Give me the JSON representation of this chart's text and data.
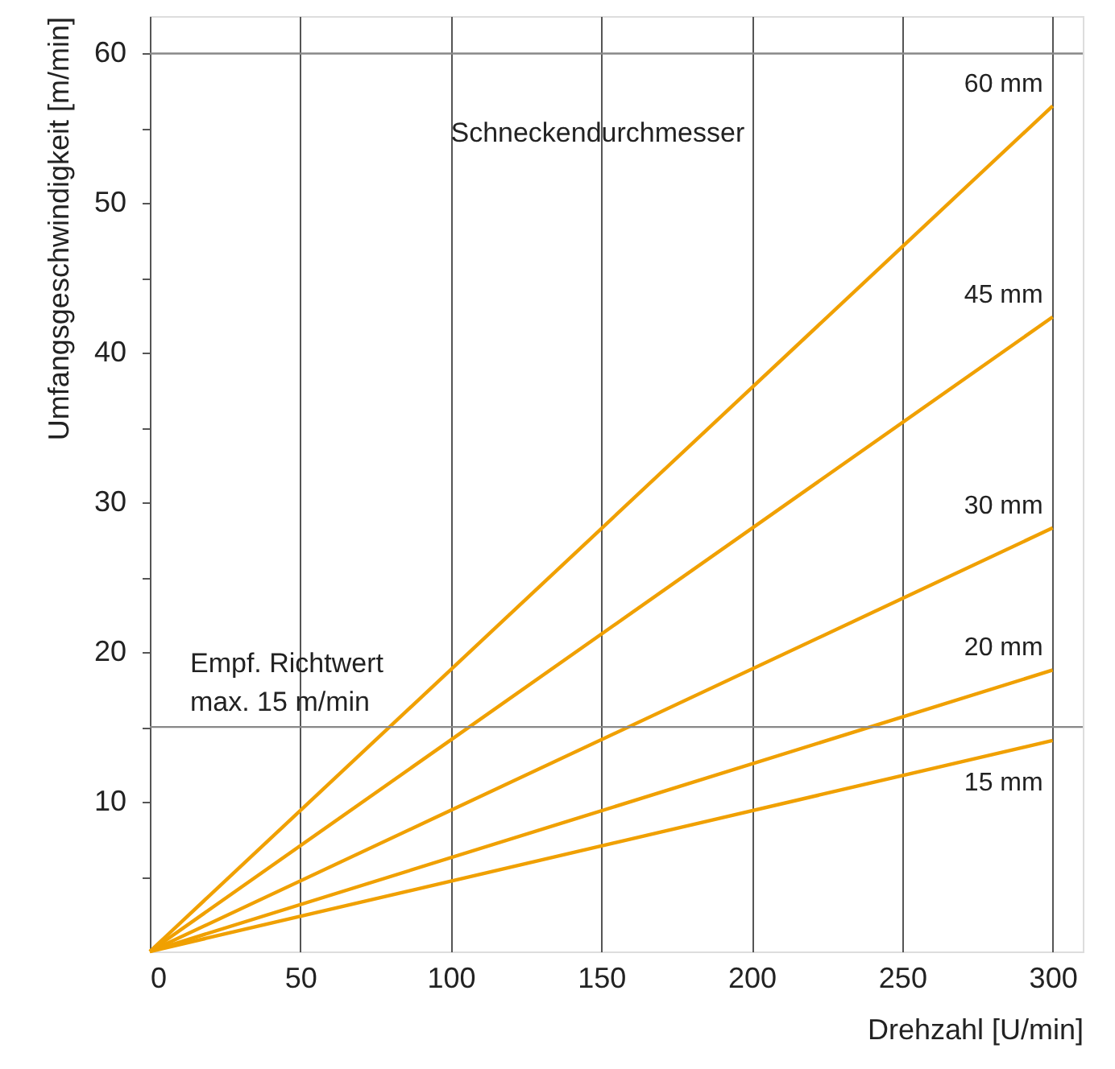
{
  "chart_data": {
    "type": "line",
    "xlabel": "Drehzahl [U/min]",
    "ylabel": "Umfangsgeschwindigkeit [m/min]",
    "x": [
      0,
      300
    ],
    "series": [
      {
        "name": "60 mm",
        "color": "#f0a000",
        "values": [
          0,
          56.5
        ]
      },
      {
        "name": "45 mm",
        "color": "#f0a000",
        "values": [
          0,
          42.4
        ]
      },
      {
        "name": "30 mm",
        "color": "#f0a000",
        "values": [
          0,
          28.3
        ]
      },
      {
        "name": "20 mm",
        "color": "#f0a000",
        "values": [
          0,
          18.8
        ]
      },
      {
        "name": "15 mm",
        "color": "#f0a000",
        "values": [
          0,
          14.1
        ]
      }
    ],
    "xlim": [
      0,
      310
    ],
    "ylim": [
      0,
      62.5
    ],
    "xticks": [
      0,
      50,
      100,
      150,
      200,
      250,
      300
    ],
    "yticks": [
      {
        "value": 5,
        "label": null
      },
      10,
      {
        "value": 15,
        "label": null
      },
      20,
      {
        "value": 25,
        "label": null
      },
      30,
      {
        "value": 35,
        "label": null
      },
      40,
      {
        "value": 45,
        "label": null
      },
      50,
      {
        "value": 55,
        "label": null
      },
      60
    ],
    "grid": "x",
    "marker": "none",
    "line_style": "solid",
    "ref_lines": [
      {
        "axis": "y",
        "value": 60,
        "color": "#888888"
      },
      {
        "axis": "y",
        "value": 15,
        "label": "Empf. Richtwert\nmax. 15 m/min",
        "color": "#888888"
      }
    ],
    "annotations": [
      "Schneckendurchmesser"
    ]
  }
}
